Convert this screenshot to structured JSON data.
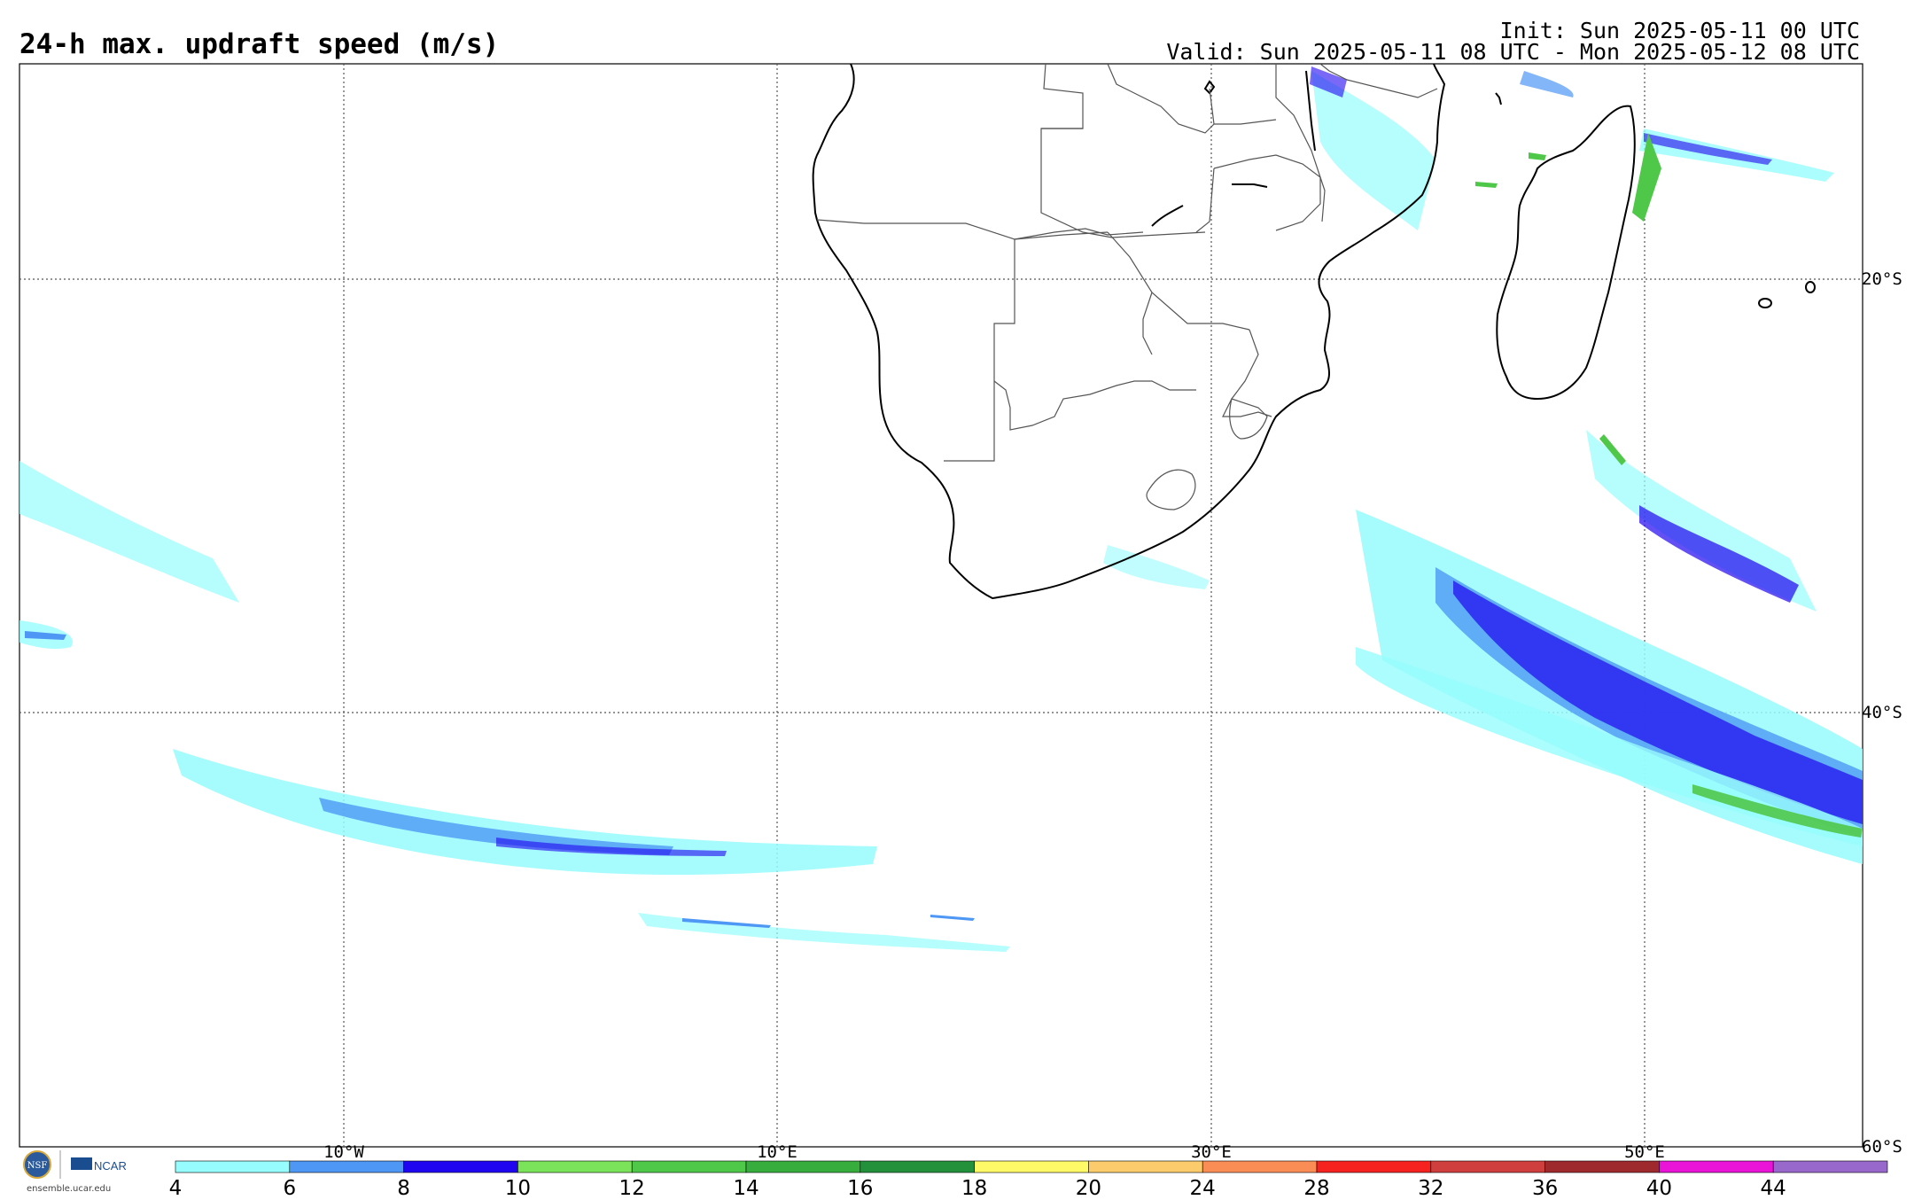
{
  "header": {
    "title": "24-h max. updraft speed (m/s)",
    "init": "Init: Sun 2025-05-11 00 UTC",
    "valid": "Valid: Sun 2025-05-11 08 UTC - Mon 2025-05-12 08 UTC"
  },
  "axes": {
    "lon_labels": [
      "10°W",
      "10°E",
      "30°E",
      "50°E"
    ],
    "lat_labels": [
      "20°S",
      "40°S",
      "60°S"
    ]
  },
  "colorbar": {
    "unit": "m/s",
    "ticks": [
      "4",
      "6",
      "8",
      "10",
      "12",
      "14",
      "16",
      "18",
      "20",
      "24",
      "28",
      "32",
      "36",
      "40",
      "44"
    ],
    "colors": [
      "#97fcfd",
      "#4e97f5",
      "#1f05f0",
      "#7ae35a",
      "#4fc84a",
      "#36ad3d",
      "#23913b",
      "#fefa67",
      "#fccb6c",
      "#fa8c55",
      "#f52220",
      "#cf3f3d",
      "#9f2a2d",
      "#e914d8",
      "#9868cc"
    ]
  },
  "logo": {
    "nsf": "NSF",
    "ncar": "NCAR",
    "url": "ensemble.ucar.edu"
  }
}
